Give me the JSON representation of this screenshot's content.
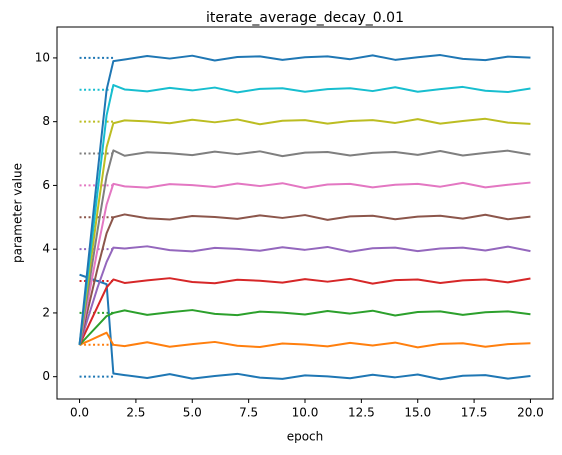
{
  "chart_data": {
    "type": "line",
    "title": "iterate_average_decay_0.01",
    "x_label": "epoch",
    "y_label": "parameter value",
    "x": [
      0,
      0.4,
      0.8,
      1.2,
      1.5,
      2,
      3,
      4,
      5,
      6,
      7,
      8,
      9,
      10,
      11,
      12,
      13,
      14,
      15,
      16,
      17,
      18,
      19,
      20
    ],
    "target_x": [
      0,
      1.5
    ],
    "series": [
      {
        "color": "#1f77b4",
        "target": 0,
        "values": [
          3.2,
          3.1,
          3.0,
          2.9,
          0.1,
          0.05,
          -0.04,
          0.08,
          -0.06,
          0.02,
          0.09,
          -0.03,
          -0.07,
          0.04,
          0.01,
          -0.05,
          0.06,
          -0.02,
          0.07,
          -0.08,
          0.03,
          0.05,
          -0.06,
          0.02
        ]
      },
      {
        "color": "#ff7f0e",
        "target": 1,
        "values": [
          1,
          1.12,
          1.25,
          1.38,
          1.0,
          0.96,
          1.08,
          0.94,
          1.02,
          1.09,
          0.97,
          0.93,
          1.04,
          1.01,
          0.95,
          1.06,
          0.98,
          1.07,
          0.92,
          1.03,
          1.05,
          0.94,
          1.02,
          1.05
        ]
      },
      {
        "color": "#2ca02c",
        "target": 2,
        "values": [
          1,
          1.3,
          1.6,
          1.9,
          2.0,
          2.08,
          1.94,
          2.02,
          2.09,
          1.97,
          1.93,
          2.04,
          2.01,
          1.95,
          2.06,
          1.98,
          2.07,
          1.92,
          2.03,
          2.05,
          1.94,
          2.02,
          2.05,
          1.96
        ]
      },
      {
        "color": "#d62728",
        "target": 3,
        "values": [
          1,
          1.6,
          2.2,
          2.8,
          3.05,
          2.94,
          3.02,
          3.09,
          2.97,
          2.93,
          3.04,
          3.01,
          2.95,
          3.06,
          2.98,
          3.07,
          2.92,
          3.03,
          3.05,
          2.94,
          3.02,
          3.05,
          2.96,
          3.08
        ]
      },
      {
        "color": "#9467bd",
        "target": 4,
        "values": [
          1,
          1.9,
          2.8,
          3.6,
          4.05,
          4.02,
          4.09,
          3.97,
          3.93,
          4.04,
          4.01,
          3.95,
          4.06,
          3.98,
          4.07,
          3.92,
          4.03,
          4.05,
          3.94,
          4.02,
          4.05,
          3.96,
          4.08,
          3.94
        ]
      },
      {
        "color": "#8c564b",
        "target": 5,
        "values": [
          1,
          2.2,
          3.4,
          4.5,
          5.0,
          5.09,
          4.97,
          4.93,
          5.04,
          5.01,
          4.95,
          5.06,
          4.98,
          5.07,
          4.92,
          5.03,
          5.05,
          4.94,
          5.02,
          5.05,
          4.96,
          5.08,
          4.94,
          5.02
        ]
      },
      {
        "color": "#e377c2",
        "target": 6,
        "values": [
          1,
          2.5,
          4.0,
          5.4,
          6.05,
          5.97,
          5.93,
          6.04,
          6.01,
          5.95,
          6.06,
          5.98,
          6.07,
          5.92,
          6.03,
          6.05,
          5.94,
          6.02,
          6.05,
          5.96,
          6.08,
          5.94,
          6.02,
          6.09
        ]
      },
      {
        "color": "#7f7f7f",
        "target": 7,
        "values": [
          1,
          2.8,
          4.6,
          6.3,
          7.1,
          6.93,
          7.04,
          7.01,
          6.95,
          7.06,
          6.98,
          7.07,
          6.92,
          7.03,
          7.05,
          6.94,
          7.02,
          7.05,
          6.96,
          7.08,
          6.94,
          7.02,
          7.09,
          6.97
        ]
      },
      {
        "color": "#bcbd22",
        "target": 8,
        "values": [
          1,
          3.1,
          5.2,
          7.2,
          7.95,
          8.04,
          8.01,
          7.95,
          8.06,
          7.98,
          8.07,
          7.92,
          8.03,
          8.05,
          7.94,
          8.02,
          8.05,
          7.96,
          8.08,
          7.94,
          8.02,
          8.09,
          7.97,
          7.93
        ]
      },
      {
        "color": "#17becf",
        "target": 9,
        "values": [
          1,
          3.4,
          5.8,
          8.2,
          9.15,
          9.01,
          8.95,
          9.06,
          8.98,
          9.07,
          8.92,
          9.03,
          9.05,
          8.94,
          9.02,
          9.05,
          8.96,
          9.08,
          8.94,
          9.02,
          9.09,
          8.97,
          8.93,
          9.04
        ]
      },
      {
        "color": "#1f77b4",
        "target": 10,
        "values": [
          1,
          3.7,
          6.4,
          9.0,
          9.9,
          9.95,
          10.06,
          9.98,
          10.07,
          9.92,
          10.03,
          10.05,
          9.94,
          10.02,
          10.05,
          9.96,
          10.08,
          9.94,
          10.02,
          10.09,
          9.97,
          9.93,
          10.04,
          10.01
        ]
      }
    ],
    "xlim": [
      -1,
      21
    ],
    "ylim": [
      -0.7,
      10.97
    ],
    "xticks": [
      {
        "value": 0,
        "label": "0.0"
      },
      {
        "value": 2.5,
        "label": "2.5"
      },
      {
        "value": 5,
        "label": "5.0"
      },
      {
        "value": 7.5,
        "label": "7.5"
      },
      {
        "value": 10,
        "label": "10.0"
      },
      {
        "value": 12.5,
        "label": "12.5"
      },
      {
        "value": 15,
        "label": "15.0"
      },
      {
        "value": 17.5,
        "label": "17.5"
      },
      {
        "value": 20,
        "label": "20.0"
      }
    ],
    "yticks": [
      0,
      2,
      4,
      6,
      8,
      10
    ],
    "grid": false
  }
}
